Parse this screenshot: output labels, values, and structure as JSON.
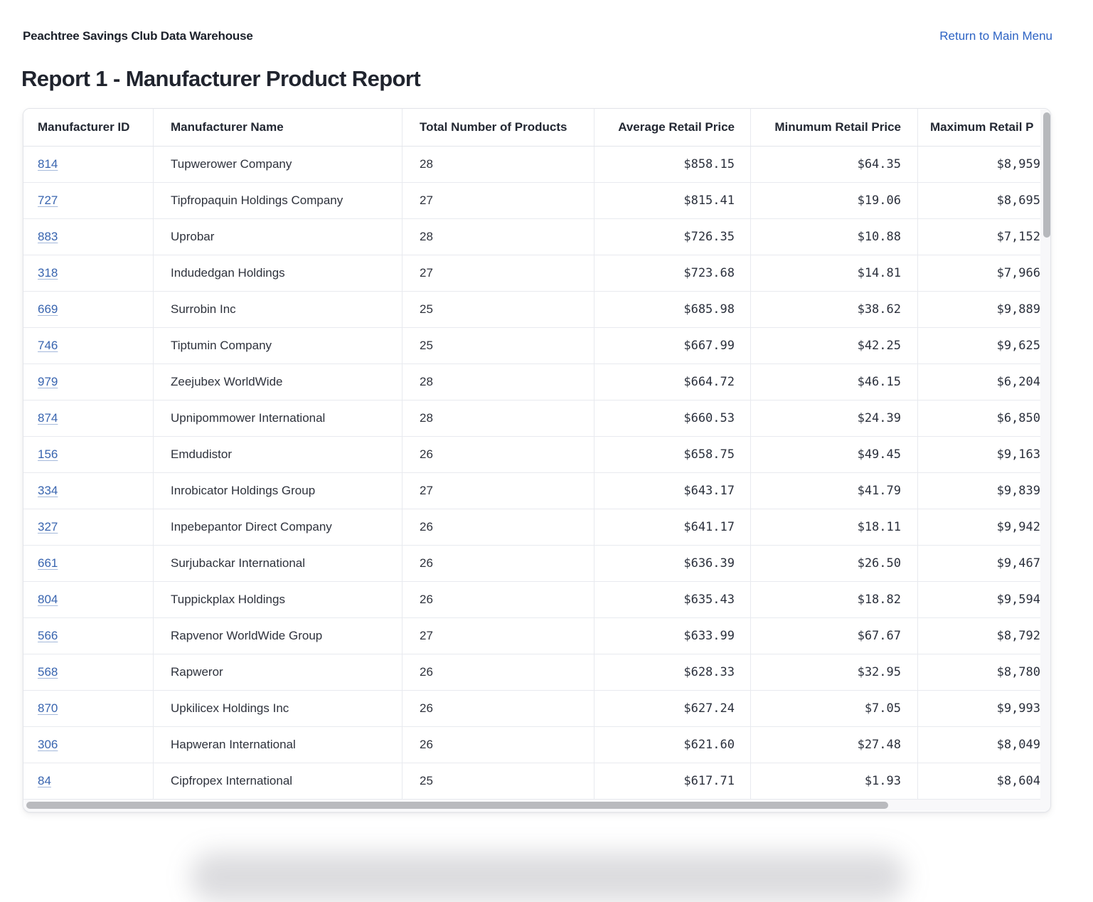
{
  "header": {
    "app_title": "Peachtree Savings Club Data Warehouse",
    "menu_link": "Return to Main Menu"
  },
  "page_title": "Report 1 - Manufacturer Product Report",
  "table": {
    "columns": [
      "Manufacturer ID",
      "Manufacturer Name",
      "Total Number of Products",
      "Average Retail Price",
      "Minumum Retail Price",
      "Maximum Retail P"
    ],
    "rows": [
      {
        "id": "814",
        "name": "Tupwerower Company",
        "total_products": "28",
        "avg_price": "$858.15",
        "min_price": "$64.35",
        "max_price": "$8,959"
      },
      {
        "id": "727",
        "name": "Tipfropaquin Holdings Company",
        "total_products": "27",
        "avg_price": "$815.41",
        "min_price": "$19.06",
        "max_price": "$8,695"
      },
      {
        "id": "883",
        "name": "Uprobar",
        "total_products": "28",
        "avg_price": "$726.35",
        "min_price": "$10.88",
        "max_price": "$7,152"
      },
      {
        "id": "318",
        "name": "Indudedgan Holdings",
        "total_products": "27",
        "avg_price": "$723.68",
        "min_price": "$14.81",
        "max_price": "$7,966"
      },
      {
        "id": "669",
        "name": "Surrobin Inc",
        "total_products": "25",
        "avg_price": "$685.98",
        "min_price": "$38.62",
        "max_price": "$9,889"
      },
      {
        "id": "746",
        "name": "Tiptumin Company",
        "total_products": "25",
        "avg_price": "$667.99",
        "min_price": "$42.25",
        "max_price": "$9,625"
      },
      {
        "id": "979",
        "name": "Zeejubex WorldWide",
        "total_products": "28",
        "avg_price": "$664.72",
        "min_price": "$46.15",
        "max_price": "$6,204"
      },
      {
        "id": "874",
        "name": "Upnipommower International",
        "total_products": "28",
        "avg_price": "$660.53",
        "min_price": "$24.39",
        "max_price": "$6,850"
      },
      {
        "id": "156",
        "name": "Emdudistor",
        "total_products": "26",
        "avg_price": "$658.75",
        "min_price": "$49.45",
        "max_price": "$9,163"
      },
      {
        "id": "334",
        "name": "Inrobicator Holdings Group",
        "total_products": "27",
        "avg_price": "$643.17",
        "min_price": "$41.79",
        "max_price": "$9,839"
      },
      {
        "id": "327",
        "name": "Inpebepantor Direct Company",
        "total_products": "26",
        "avg_price": "$641.17",
        "min_price": "$18.11",
        "max_price": "$9,942"
      },
      {
        "id": "661",
        "name": "Surjubackar International",
        "total_products": "26",
        "avg_price": "$636.39",
        "min_price": "$26.50",
        "max_price": "$9,467"
      },
      {
        "id": "804",
        "name": "Tuppickplax Holdings",
        "total_products": "26",
        "avg_price": "$635.43",
        "min_price": "$18.82",
        "max_price": "$9,594"
      },
      {
        "id": "566",
        "name": "Rapvenor WorldWide Group",
        "total_products": "27",
        "avg_price": "$633.99",
        "min_price": "$67.67",
        "max_price": "$8,792"
      },
      {
        "id": "568",
        "name": "Rapweror",
        "total_products": "26",
        "avg_price": "$628.33",
        "min_price": "$32.95",
        "max_price": "$8,780"
      },
      {
        "id": "870",
        "name": "Upkilicex Holdings Inc",
        "total_products": "26",
        "avg_price": "$627.24",
        "min_price": "$7.05",
        "max_price": "$9,993"
      },
      {
        "id": "306",
        "name": "Hapweran International",
        "total_products": "26",
        "avg_price": "$621.60",
        "min_price": "$27.48",
        "max_price": "$8,049"
      },
      {
        "id": "84",
        "name": "Cipfropex International",
        "total_products": "25",
        "avg_price": "$617.71",
        "min_price": "$1.93",
        "max_price": "$8,604"
      }
    ]
  },
  "colors": {
    "link_blue": "#2d63c4",
    "table_link_blue": "#3864af",
    "text_dark": "#20242e",
    "border_light": "#e8eaef",
    "scrollbar_thumb": "#b9babe"
  }
}
